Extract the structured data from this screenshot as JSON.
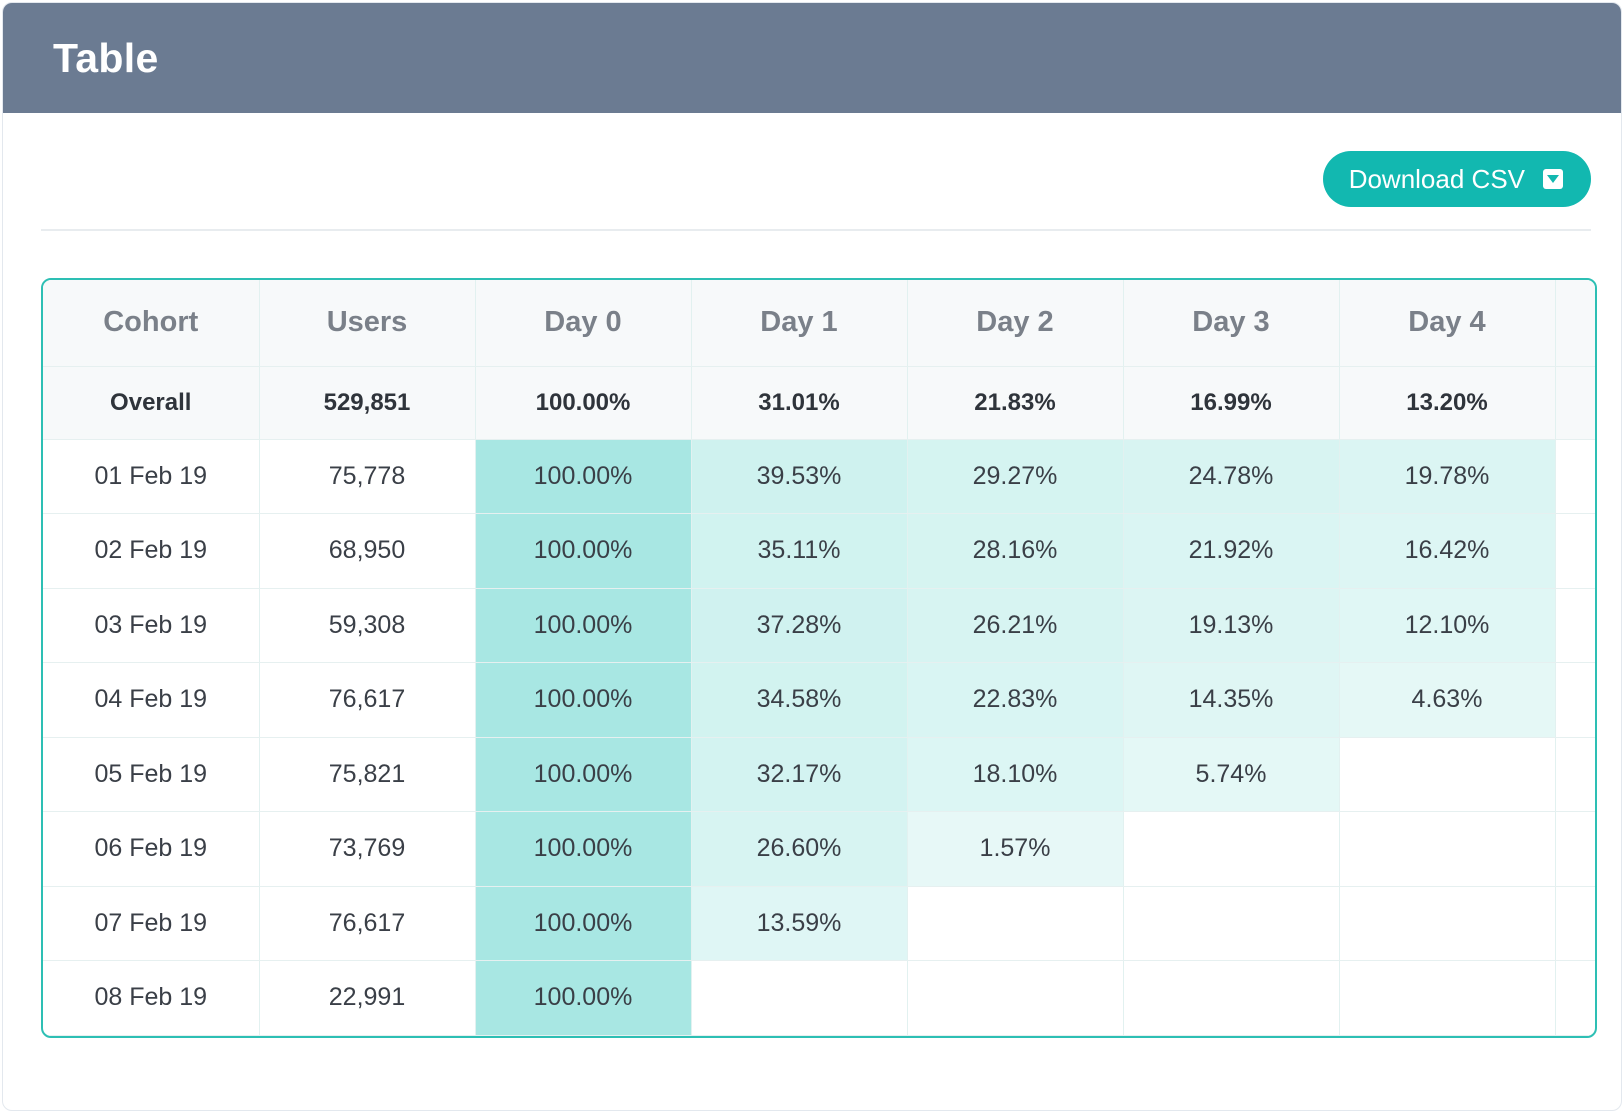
{
  "header": {
    "title": "Table"
  },
  "toolbar": {
    "download_label": "Download CSV",
    "download_icon": "download-dropdown-icon"
  },
  "table": {
    "columns": [
      "Cohort",
      "Users",
      "Day 0",
      "Day 1",
      "Day 2",
      "Day 3",
      "Day 4"
    ],
    "overall": {
      "cohort": "Overall",
      "users": "529,851",
      "days": [
        "100.00%",
        "31.01%",
        "21.83%",
        "16.99%",
        "13.20%"
      ]
    },
    "rows": [
      {
        "cohort": "01 Feb 19",
        "users": "75,778",
        "days": [
          "100.00%",
          "39.53%",
          "29.27%",
          "24.78%",
          "19.78%"
        ]
      },
      {
        "cohort": "02 Feb 19",
        "users": "68,950",
        "days": [
          "100.00%",
          "35.11%",
          "28.16%",
          "21.92%",
          "16.42%"
        ]
      },
      {
        "cohort": "03 Feb 19",
        "users": "59,308",
        "days": [
          "100.00%",
          "37.28%",
          "26.21%",
          "19.13%",
          "12.10%"
        ]
      },
      {
        "cohort": "04 Feb 19",
        "users": "76,617",
        "days": [
          "100.00%",
          "34.58%",
          "22.83%",
          "14.35%",
          "4.63%"
        ]
      },
      {
        "cohort": "05 Feb 19",
        "users": "75,821",
        "days": [
          "100.00%",
          "32.17%",
          "18.10%",
          "5.74%",
          ""
        ]
      },
      {
        "cohort": "06 Feb 19",
        "users": "73,769",
        "days": [
          "100.00%",
          "26.60%",
          "1.57%",
          "",
          ""
        ]
      },
      {
        "cohort": "07 Feb 19",
        "users": "76,617",
        "days": [
          "100.00%",
          "13.59%",
          "",
          "",
          ""
        ]
      },
      {
        "cohort": "08 Feb 19",
        "users": "22,991",
        "days": [
          "100.00%",
          "",
          "",
          "",
          ""
        ]
      }
    ]
  },
  "colors": {
    "header_bg": "#6b7b92",
    "accent": "#12b8b0",
    "heat": "#7fdcd5"
  }
}
